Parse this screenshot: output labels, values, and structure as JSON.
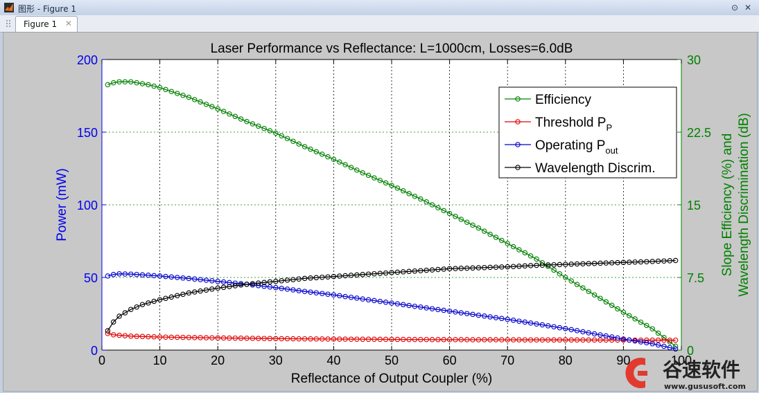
{
  "window": {
    "title": "图形 - Figure 1",
    "tab_label": "Figure 1"
  },
  "chart_data": {
    "type": "line",
    "title": "Laser Performance vs Reflectance: L=1000cm, Losses=6.0dB",
    "xlabel": "Reflectance of Output Coupler (%)",
    "ylabel_left": "Power (mW)",
    "ylabel_right": [
      "Slope Efficiency (%) and",
      "Wavelength Discrimination (dB)"
    ],
    "xlim": [
      0,
      100
    ],
    "ylim_left": [
      0,
      200
    ],
    "ylim_right": [
      0,
      30
    ],
    "xticks": [
      0,
      10,
      20,
      30,
      40,
      50,
      60,
      70,
      80,
      90,
      100
    ],
    "xtick_labels": [
      "0",
      "10",
      "20",
      "30",
      "40",
      "50",
      "60",
      "70",
      "80",
      "90",
      "100"
    ],
    "yticks_left": [
      0,
      50,
      100,
      150,
      200
    ],
    "ytick_labels_left": [
      "0",
      "50",
      "100",
      "150",
      "200"
    ],
    "yticks_right": [
      0,
      7.5,
      15,
      22.5,
      30
    ],
    "ytick_labels_right": [
      "0",
      "7.5",
      "15",
      "22.5",
      "30"
    ],
    "grid": true,
    "legend_position": "top-right",
    "series": [
      {
        "name": "Efficiency",
        "axis": "right",
        "color": "#008000",
        "x": [
          1,
          2,
          3,
          5,
          8,
          10,
          15,
          20,
          25,
          30,
          35,
          40,
          45,
          50,
          55,
          60,
          65,
          70,
          75,
          80,
          85,
          90,
          95,
          99
        ],
        "y": [
          27.4,
          27.6,
          27.7,
          27.7,
          27.4,
          27.1,
          26.1,
          24.9,
          23.6,
          22.4,
          21.0,
          19.7,
          18.3,
          17.0,
          15.6,
          14.1,
          12.6,
          11.0,
          9.4,
          7.5,
          5.7,
          3.9,
          2.2,
          0.4
        ]
      },
      {
        "name": "Threshold P",
        "name_sub": "P",
        "axis": "left",
        "color": "#e00000",
        "x": [
          1,
          2,
          5,
          10,
          20,
          30,
          40,
          50,
          60,
          70,
          80,
          90,
          99
        ],
        "y": [
          11.5,
          10.5,
          9.6,
          9.0,
          8.4,
          7.9,
          7.6,
          7.4,
          7.2,
          7.1,
          7.0,
          6.9,
          6.8
        ]
      },
      {
        "name": "Operating P",
        "name_sub": "out",
        "axis": "left",
        "color": "#0000cc",
        "x": [
          1,
          2,
          3,
          5,
          10,
          15,
          20,
          25,
          30,
          35,
          40,
          45,
          50,
          55,
          60,
          65,
          70,
          75,
          80,
          85,
          90,
          95,
          99
        ],
        "y": [
          51,
          52,
          52.5,
          52.3,
          51,
          49.3,
          47.3,
          45.3,
          43,
          40.4,
          38,
          35.2,
          32.4,
          29.6,
          26.8,
          24.0,
          21.2,
          18.0,
          14.8,
          11.2,
          7.6,
          4.4,
          0.8
        ]
      },
      {
        "name": "Wavelength Discrim.",
        "axis": "right",
        "color": "#000000",
        "x": [
          1,
          2,
          3,
          5,
          7,
          10,
          15,
          20,
          25,
          30,
          35,
          40,
          45,
          50,
          55,
          60,
          65,
          70,
          75,
          80,
          85,
          90,
          95,
          99
        ],
        "y": [
          2.0,
          2.9,
          3.5,
          4.2,
          4.7,
          5.2,
          5.9,
          6.4,
          6.8,
          7.1,
          7.4,
          7.6,
          7.8,
          8.0,
          8.2,
          8.4,
          8.5,
          8.6,
          8.75,
          8.85,
          8.95,
          9.05,
          9.15,
          9.25
        ]
      }
    ]
  },
  "watermark": {
    "text": "谷速软件",
    "url": "www.gususoft.com",
    "color": "#e23a2e"
  }
}
